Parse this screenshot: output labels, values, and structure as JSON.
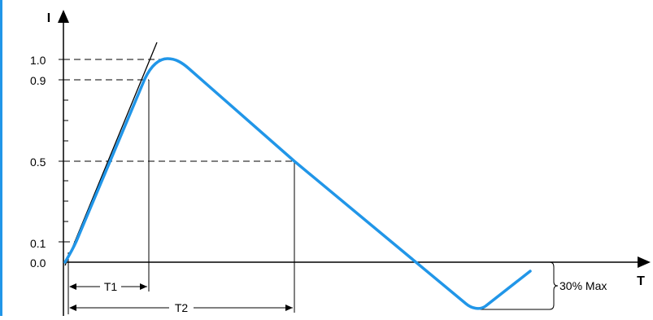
{
  "diagram": {
    "y_axis_label": "I",
    "x_axis_label": "T",
    "y_ticks": [
      "1.0",
      "0.9",
      "0.5",
      "0.1",
      "0.0"
    ],
    "dimensions": {
      "t1": "T1",
      "t2": "T2",
      "undershoot": "30% Max"
    },
    "colors": {
      "waveform": "#2196e8",
      "lines": "#000000",
      "left_edge_bar": "#2196e8"
    }
  }
}
